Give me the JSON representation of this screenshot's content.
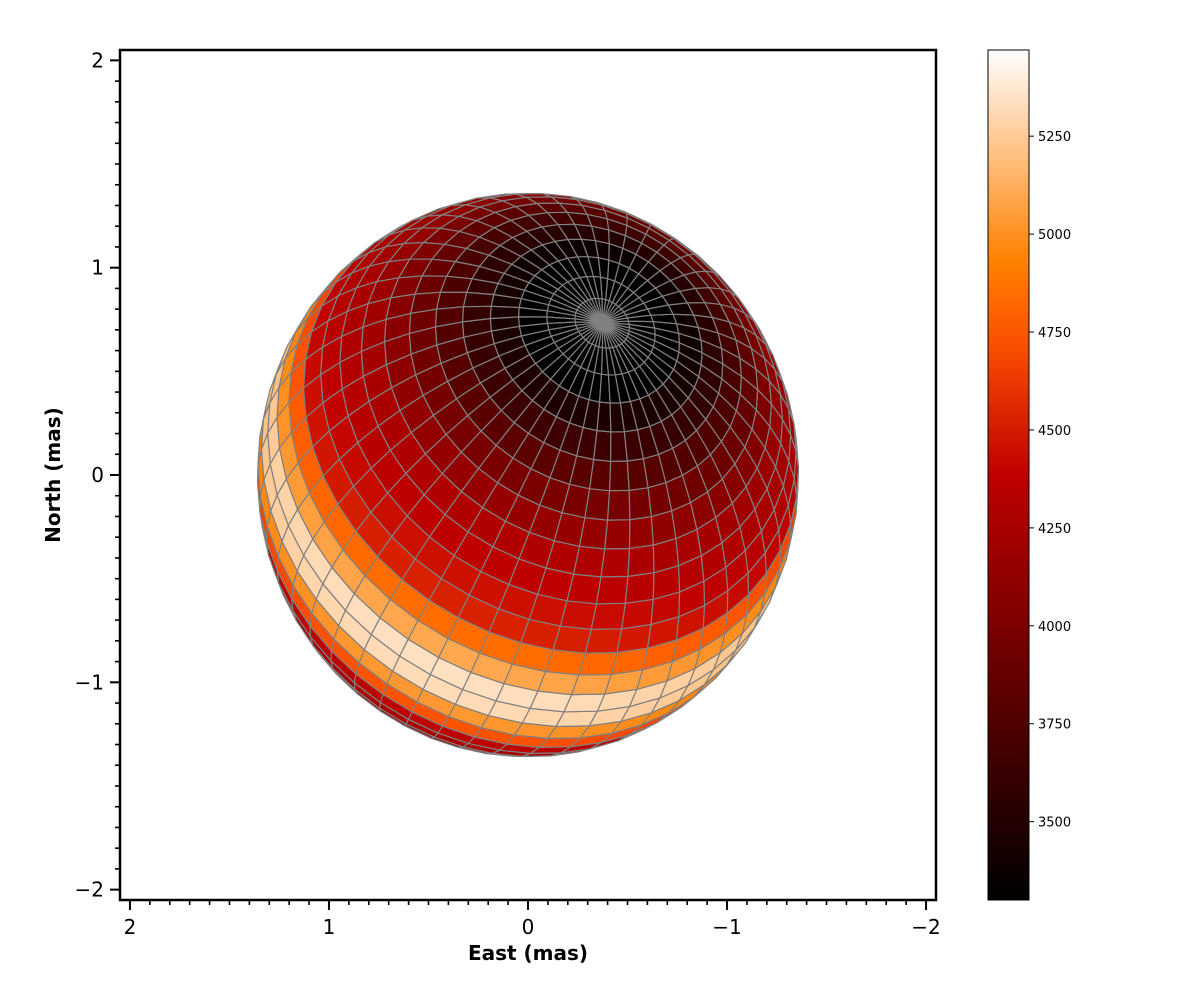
{
  "chart_data": {
    "type": "heatmap",
    "description_kind": "stellar surface temperature map (gravity-darkened rotating star, projected grid)",
    "xlabel": "East (mas)",
    "ylabel": "North (mas)",
    "xlim": [
      2.05,
      -2.05
    ],
    "ylim": [
      -2.05,
      2.05
    ],
    "x_inverted": true,
    "xticks": [
      2,
      1,
      0,
      -1,
      -2
    ],
    "xtick_labels": [
      "2",
      "1",
      "0",
      "−1",
      "−2"
    ],
    "yticks": [
      2,
      1,
      0,
      -1,
      -2
    ],
    "ytick_labels": [
      "2",
      "1",
      "0",
      "−1",
      "−2"
    ],
    "minor_tick_step": 0.1,
    "star": {
      "center": [
        0,
        0
      ],
      "equatorial_radius_mas": 1.36,
      "polar_radius_mas": 1.36,
      "bright_band_axis_angle_deg": 27,
      "visible_pole": "north-east",
      "band_sweeps_to": "south-east limb",
      "temperature_min_K": 3300,
      "temperature_max_K": 5470
    },
    "colorbar": {
      "cmap": "gist_heat",
      "vmin": 3300,
      "vmax": 5470,
      "ticks": [
        3500,
        3750,
        4000,
        4250,
        4500,
        4750,
        5000,
        5250
      ],
      "tick_labels": [
        "3500",
        "3750",
        "4000",
        "4250",
        "4500",
        "4750",
        "5000",
        "5250"
      ]
    },
    "grid_color": "#808080",
    "limb_color": "#808080"
  }
}
